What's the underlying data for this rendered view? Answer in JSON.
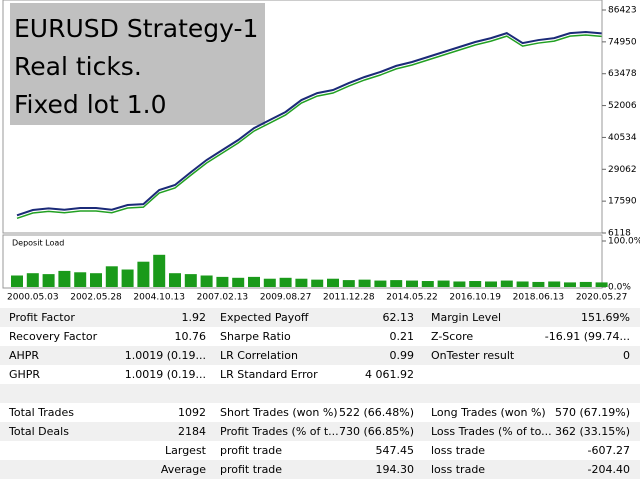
{
  "chart_data": [
    {
      "type": "line",
      "annotations": [
        "EURUSD Strategy-1",
        "Real ticks.",
        "Fixed lot 1.0"
      ],
      "categories": [
        null,
        "2000.05.03",
        null,
        null,
        null,
        "2002.05.28",
        null,
        null,
        null,
        "2004.10.13",
        null,
        null,
        null,
        "2007.02.13",
        null,
        null,
        null,
        "2009.08.27",
        null,
        null,
        null,
        "2011.12.28",
        null,
        null,
        null,
        "2014.05.22",
        null,
        null,
        null,
        "2016.10.19",
        null,
        null,
        null,
        "2018.06.13",
        null,
        null,
        null,
        "2020.05.27"
      ],
      "values": [
        12500,
        14400,
        15000,
        14500,
        15100,
        15100,
        14500,
        16200,
        16500,
        21600,
        23400,
        28000,
        32400,
        36000,
        39600,
        43900,
        46800,
        49700,
        54000,
        56500,
        57600,
        60100,
        62300,
        64100,
        66300,
        67700,
        69500,
        71300,
        73100,
        74900,
        76300,
        78100,
        74500,
        75600,
        76300,
        78100,
        78500,
        78000
      ],
      "color": "#1b2a78",
      "ylim": [
        6118,
        86423
      ],
      "yticks": [
        6118,
        17590,
        29062,
        40534,
        52006,
        63478,
        74950,
        86423
      ]
    },
    {
      "type": "bar",
      "title": "Deposit Load",
      "values": [
        25,
        30,
        28,
        35,
        32,
        30,
        45,
        38,
        55,
        70,
        30,
        28,
        25,
        22,
        20,
        22,
        18,
        20,
        18,
        16,
        18,
        15,
        16,
        14,
        15,
        14,
        13,
        14,
        12,
        13,
        12,
        14,
        12,
        11,
        12,
        10,
        11,
        10
      ],
      "color": "#1a9a1a",
      "ylim": [
        0,
        100
      ],
      "yticks": [
        {
          "value": 0,
          "label": "0.0%"
        },
        {
          "value": 100,
          "label": "100.0%"
        }
      ]
    }
  ],
  "report": {
    "sections": [
      {
        "rows": [
          [
            {
              "label": "Profit Factor",
              "value": "1.92"
            },
            {
              "label": "Expected Payoff",
              "value": "62.13"
            },
            {
              "label": "Margin Level",
              "value": "151.69%"
            }
          ],
          [
            {
              "label": "Recovery Factor",
              "value": "10.76"
            },
            {
              "label": "Sharpe Ratio",
              "value": "0.21"
            },
            {
              "label": "Z-Score",
              "value": "-16.91 (99.74..."
            }
          ],
          [
            {
              "label": "AHPR",
              "value": "1.0019 (0.19..."
            },
            {
              "label": "LR Correlation",
              "value": "0.99"
            },
            {
              "label": "OnTester result",
              "value": "0"
            }
          ],
          [
            {
              "label": "GHPR",
              "value": "1.0019 (0.19..."
            },
            {
              "label": "LR Standard Error",
              "value": "4 061.92"
            },
            null
          ]
        ]
      },
      {
        "rows": [
          [
            {
              "label": "Total Trades",
              "value": "1092"
            },
            {
              "label": "Short Trades (won %)",
              "value": "522 (66.48%)"
            },
            {
              "label": "Long Trades (won %)",
              "value": "570 (67.19%)"
            }
          ],
          [
            {
              "label": "Total Deals",
              "value": "2184"
            },
            {
              "label": "Profit Trades (% of t...",
              "value": "730 (66.85%)"
            },
            {
              "label": "Loss Trades (% of to...",
              "value": "362 (33.15%)"
            }
          ],
          [
            {
              "value": "Largest"
            },
            {
              "label": "profit trade",
              "value": "547.45"
            },
            {
              "label": "loss trade",
              "value": "-607.27"
            }
          ],
          [
            {
              "value": "Average"
            },
            {
              "label": "profit trade",
              "value": "194.30"
            },
            {
              "label": "loss trade",
              "value": "-204.40"
            }
          ]
        ]
      }
    ]
  }
}
